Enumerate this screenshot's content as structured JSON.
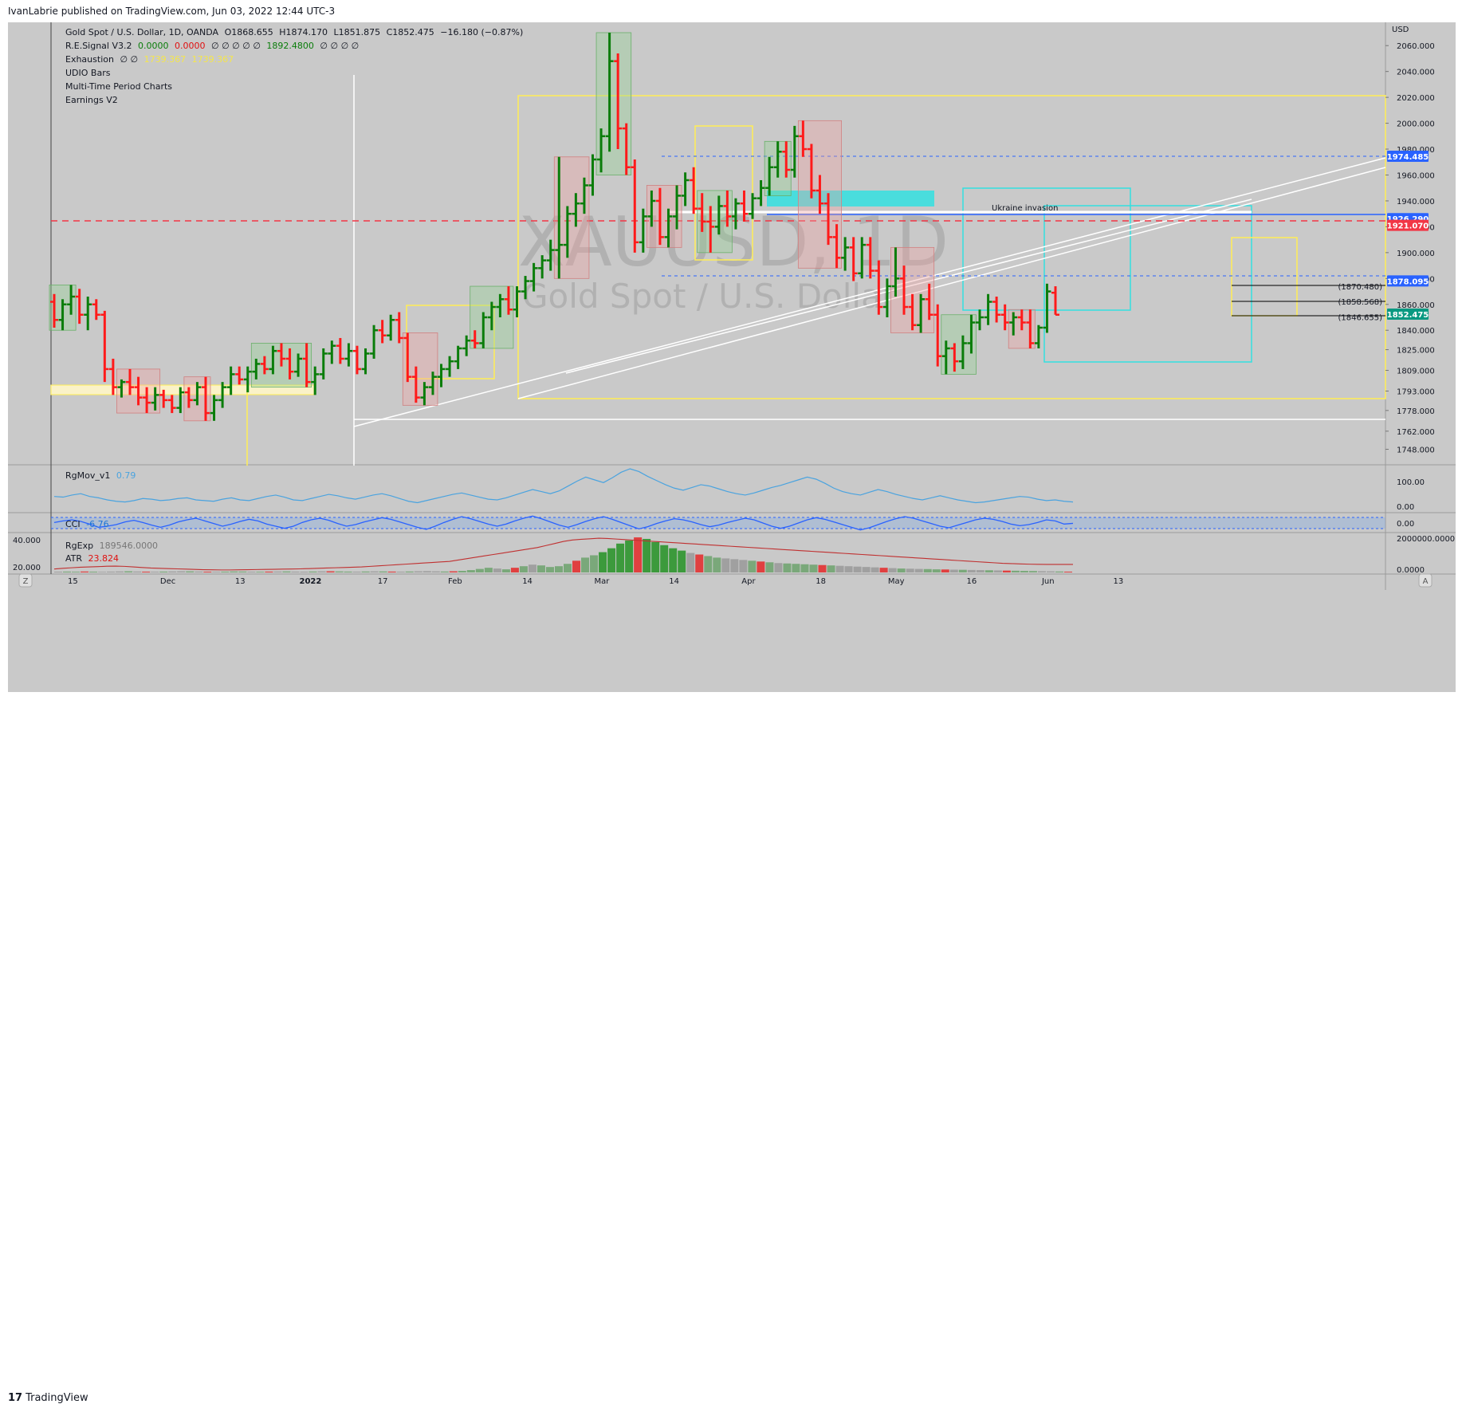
{
  "header": {
    "published": "IvanLabrie published on TradingView.com, Jun 03, 2022 12:44 UTC-3"
  },
  "footer": {
    "brand": "TradingView",
    "mark": "17"
  },
  "legend": {
    "symbol": "Gold Spot / U.S. Dollar, 1D, OANDA",
    "o": "O1868.655",
    "h": "H1874.170",
    "l": "L1851.875",
    "c": "C1852.475",
    "chg": "−16.180 (−0.87%)",
    "re_name": "R.E.Signal V3.2",
    "re_v1": "0.0000",
    "re_v2": "0.0000",
    "re_zeros": "∅ ∅ ∅ ∅ ∅",
    "re_v3": "1892.4800",
    "re_zeros2": "∅ ∅ ∅ ∅",
    "ex_name": "Exhaustion",
    "ex_zeros": "∅ ∅",
    "ex_v1": "1739.367",
    "ex_v2": "1739.367",
    "udio": "UDIO Bars",
    "mtp": "Multi-Time Period Charts",
    "earn": "Earnings V2"
  },
  "watermark": {
    "ticker": "XAUUSD, 1D",
    "name": "Gold Spot / U.S. Dollar"
  },
  "annotation": "Ukraine invasion",
  "pane_labels": {
    "rgmov": "RgMov_v1",
    "rgmov_val": "0.79",
    "cci": "CCI",
    "cci_val": "-6.76",
    "rgexp": "RgExp",
    "rgexp_val": "189546.0000",
    "atr": "ATR",
    "atr_val": "23.824"
  },
  "buttons": {
    "z": "Z",
    "a": "A"
  },
  "colors": {
    "up": "#0a7d0a",
    "down": "#ff1a1a",
    "neutral": "#000000",
    "bg": "#c9c9c9",
    "cyan": "#33e0e0",
    "yellow": "#ffee55"
  },
  "chart_data": {
    "type": "bar",
    "title": "Gold Spot / U.S. Dollar, 1D, OANDA",
    "currency": "USD",
    "ylim": [
      1736,
      2078
    ],
    "yticks": [
      "2060.000",
      "2040.000",
      "2020.000",
      "2000.000",
      "1980.000",
      "1960.000",
      "1940.000",
      "1920.000",
      "1900.000",
      "1880.000",
      "1860.000",
      "1840.000",
      "1825.000",
      "1809.000",
      "1793.000",
      "1778.000",
      "1762.000",
      "1748.000"
    ],
    "xticks": [
      "15",
      "Dec",
      "13",
      "2022",
      "17",
      "Feb",
      "14",
      "Mar",
      "14",
      "Apr",
      "18",
      "May",
      "16",
      "Jun",
      "13"
    ],
    "price_labels": [
      {
        "text": "1974.485",
        "value": 1974.485,
        "color": "#2962ff"
      },
      {
        "text": "1926.290",
        "value": 1926.29,
        "color": "#2962ff"
      },
      {
        "text": "1921.070",
        "value": 1921.07,
        "color": "#f23645"
      },
      {
        "text": "1878.095",
        "value": 1878.095,
        "color": "#2962ff"
      },
      {
        "text": "1852.475",
        "value": 1852.475,
        "color": "#089981"
      }
    ],
    "level_labels": [
      {
        "text": "(1870.480)",
        "value": 1870.48
      },
      {
        "text": "(1858.568)",
        "value": 1858.568
      },
      {
        "text": "(1846.655)",
        "value": 1846.655
      }
    ],
    "rgmov_ticks": [
      "100.00",
      "0.00"
    ],
    "cci_ticks": [
      "0.00"
    ],
    "rgexp_ticks": [
      "2000000.0000",
      "0.0000"
    ],
    "atr_ticks": [
      "40.000",
      "20.000"
    ],
    "ohlc": [
      [
        1862,
        1868,
        1842,
        1848
      ],
      [
        1848,
        1864,
        1840,
        1860
      ],
      [
        1860,
        1875,
        1852,
        1866
      ],
      [
        1866,
        1872,
        1845,
        1852
      ],
      [
        1852,
        1866,
        1840,
        1860
      ],
      [
        1860,
        1864,
        1848,
        1852
      ],
      [
        1852,
        1855,
        1800,
        1810
      ],
      [
        1810,
        1818,
        1790,
        1796
      ],
      [
        1796,
        1802,
        1788,
        1800
      ],
      [
        1800,
        1810,
        1790,
        1796
      ],
      [
        1796,
        1804,
        1782,
        1788
      ],
      [
        1788,
        1796,
        1776,
        1784
      ],
      [
        1784,
        1796,
        1778,
        1790
      ],
      [
        1790,
        1794,
        1780,
        1786
      ],
      [
        1786,
        1790,
        1776,
        1780
      ],
      [
        1780,
        1796,
        1776,
        1792
      ],
      [
        1792,
        1796,
        1780,
        1786
      ],
      [
        1786,
        1800,
        1782,
        1796
      ],
      [
        1796,
        1804,
        1770,
        1776
      ],
      [
        1776,
        1790,
        1770,
        1786
      ],
      [
        1786,
        1800,
        1780,
        1796
      ],
      [
        1796,
        1812,
        1790,
        1806
      ],
      [
        1806,
        1812,
        1798,
        1802
      ],
      [
        1802,
        1812,
        1792,
        1808
      ],
      [
        1808,
        1818,
        1802,
        1814
      ],
      [
        1814,
        1820,
        1806,
        1810
      ],
      [
        1810,
        1828,
        1806,
        1824
      ],
      [
        1824,
        1830,
        1812,
        1818
      ],
      [
        1818,
        1826,
        1802,
        1808
      ],
      [
        1808,
        1822,
        1804,
        1818
      ],
      [
        1818,
        1830,
        1796,
        1800
      ],
      [
        1800,
        1812,
        1790,
        1806
      ],
      [
        1806,
        1826,
        1802,
        1822
      ],
      [
        1822,
        1832,
        1814,
        1828
      ],
      [
        1828,
        1834,
        1814,
        1818
      ],
      [
        1818,
        1830,
        1812,
        1824
      ],
      [
        1824,
        1828,
        1806,
        1810
      ],
      [
        1810,
        1826,
        1806,
        1822
      ],
      [
        1822,
        1844,
        1818,
        1840
      ],
      [
        1840,
        1848,
        1830,
        1836
      ],
      [
        1836,
        1852,
        1832,
        1848
      ],
      [
        1848,
        1854,
        1830,
        1834
      ],
      [
        1834,
        1838,
        1800,
        1804
      ],
      [
        1804,
        1812,
        1784,
        1788
      ],
      [
        1788,
        1800,
        1782,
        1796
      ],
      [
        1796,
        1808,
        1790,
        1804
      ],
      [
        1804,
        1814,
        1796,
        1810
      ],
      [
        1810,
        1820,
        1804,
        1816
      ],
      [
        1816,
        1828,
        1810,
        1826
      ],
      [
        1826,
        1836,
        1820,
        1832
      ],
      [
        1832,
        1840,
        1826,
        1830
      ],
      [
        1830,
        1854,
        1826,
        1850
      ],
      [
        1850,
        1862,
        1840,
        1858
      ],
      [
        1858,
        1868,
        1850,
        1864
      ],
      [
        1864,
        1874,
        1852,
        1856
      ],
      [
        1856,
        1874,
        1850,
        1870
      ],
      [
        1870,
        1882,
        1864,
        1878
      ],
      [
        1878,
        1892,
        1870,
        1888
      ],
      [
        1888,
        1898,
        1880,
        1894
      ],
      [
        1894,
        1910,
        1886,
        1902
      ],
      [
        1902,
        1974,
        1880,
        1906
      ],
      [
        1906,
        1936,
        1896,
        1930
      ],
      [
        1930,
        1946,
        1920,
        1938
      ],
      [
        1938,
        1958,
        1930,
        1952
      ],
      [
        1952,
        1976,
        1944,
        1972
      ],
      [
        1972,
        1996,
        1962,
        1990
      ],
      [
        1990,
        2070,
        1978,
        2048
      ],
      [
        2048,
        2054,
        1980,
        1996
      ],
      [
        1996,
        2000,
        1960,
        1966
      ],
      [
        1966,
        1972,
        1900,
        1908
      ],
      [
        1908,
        1934,
        1900,
        1928
      ],
      [
        1928,
        1948,
        1920,
        1940
      ],
      [
        1940,
        1950,
        1906,
        1912
      ],
      [
        1912,
        1934,
        1904,
        1928
      ],
      [
        1928,
        1952,
        1918,
        1944
      ],
      [
        1944,
        1962,
        1936,
        1956
      ],
      [
        1956,
        1966,
        1930,
        1934
      ],
      [
        1934,
        1946,
        1916,
        1924
      ],
      [
        1924,
        1936,
        1900,
        1920
      ],
      [
        1920,
        1944,
        1914,
        1936
      ],
      [
        1936,
        1948,
        1920,
        1928
      ],
      [
        1928,
        1942,
        1918,
        1938
      ],
      [
        1938,
        1948,
        1924,
        1930
      ],
      [
        1930,
        1946,
        1926,
        1942
      ],
      [
        1942,
        1956,
        1936,
        1950
      ],
      [
        1950,
        1974,
        1944,
        1966
      ],
      [
        1966,
        1986,
        1958,
        1978
      ],
      [
        1978,
        1986,
        1958,
        1964
      ],
      [
        1964,
        1998,
        1958,
        1990
      ],
      [
        1990,
        2002,
        1974,
        1980
      ],
      [
        1980,
        1984,
        1942,
        1948
      ],
      [
        1948,
        1960,
        1930,
        1938
      ],
      [
        1938,
        1946,
        1906,
        1912
      ],
      [
        1912,
        1922,
        1888,
        1896
      ],
      [
        1896,
        1912,
        1886,
        1904
      ],
      [
        1904,
        1912,
        1878,
        1884
      ],
      [
        1884,
        1912,
        1880,
        1906
      ],
      [
        1906,
        1912,
        1880,
        1886
      ],
      [
        1886,
        1894,
        1852,
        1858
      ],
      [
        1858,
        1880,
        1850,
        1874
      ],
      [
        1874,
        1904,
        1866,
        1880
      ],
      [
        1880,
        1890,
        1852,
        1858
      ],
      [
        1858,
        1868,
        1840,
        1844
      ],
      [
        1844,
        1868,
        1838,
        1864
      ],
      [
        1864,
        1876,
        1848,
        1852
      ],
      [
        1852,
        1860,
        1812,
        1820
      ],
      [
        1820,
        1832,
        1806,
        1826
      ],
      [
        1826,
        1830,
        1808,
        1816
      ],
      [
        1816,
        1836,
        1810,
        1830
      ],
      [
        1830,
        1852,
        1822,
        1846
      ],
      [
        1846,
        1856,
        1840,
        1850
      ],
      [
        1850,
        1868,
        1844,
        1862
      ],
      [
        1862,
        1866,
        1846,
        1852
      ],
      [
        1852,
        1860,
        1840,
        1846
      ],
      [
        1846,
        1854,
        1836,
        1850
      ],
      [
        1850,
        1856,
        1840,
        1846
      ],
      [
        1846,
        1856,
        1826,
        1830
      ],
      [
        1830,
        1844,
        1826,
        1842
      ],
      [
        1842,
        1876,
        1838,
        1870
      ],
      [
        1869,
        1874,
        1852,
        1852
      ]
    ],
    "rgmov": [
      40,
      38,
      44,
      48,
      40,
      36,
      30,
      26,
      24,
      28,
      34,
      32,
      28,
      30,
      34,
      36,
      30,
      28,
      26,
      32,
      36,
      30,
      28,
      34,
      40,
      44,
      38,
      30,
      28,
      34,
      40,
      46,
      42,
      36,
      32,
      38,
      44,
      48,
      42,
      34,
      26,
      22,
      28,
      34,
      40,
      46,
      50,
      44,
      38,
      32,
      30,
      36,
      44,
      52,
      60,
      54,
      48,
      56,
      70,
      84,
      96,
      88,
      80,
      94,
      110,
      120,
      112,
      98,
      86,
      74,
      64,
      58,
      66,
      74,
      70,
      62,
      54,
      48,
      44,
      50,
      58,
      66,
      72,
      80,
      88,
      96,
      90,
      78,
      64,
      54,
      48,
      44,
      52,
      60,
      54,
      46,
      40,
      34,
      30,
      36,
      42,
      36,
      30,
      26,
      22,
      24,
      28,
      32,
      36,
      40,
      38,
      32,
      28,
      30,
      26,
      24
    ],
    "cci": [
      10,
      40,
      60,
      30,
      -20,
      -80,
      -60,
      -30,
      20,
      50,
      10,
      -40,
      -80,
      -40,
      20,
      60,
      90,
      40,
      -10,
      -60,
      -20,
      30,
      70,
      40,
      -20,
      -60,
      -100,
      -60,
      10,
      60,
      90,
      50,
      -10,
      -60,
      -30,
      20,
      60,
      100,
      70,
      20,
      -30,
      -80,
      -120,
      -60,
      10,
      70,
      120,
      80,
      30,
      -20,
      -60,
      -20,
      40,
      90,
      130,
      80,
      20,
      -40,
      -80,
      -30,
      30,
      80,
      120,
      70,
      10,
      -50,
      -110,
      -70,
      -10,
      40,
      80,
      60,
      20,
      -30,
      -70,
      -40,
      10,
      50,
      90,
      60,
      0,
      -60,
      -100,
      -60,
      0,
      60,
      100,
      70,
      20,
      -30,
      -80,
      -130,
      -90,
      -30,
      30,
      80,
      120,
      90,
      40,
      -10,
      -60,
      -90,
      -40,
      10,
      60,
      90,
      70,
      30,
      -20,
      -50,
      -30,
      10,
      60,
      40,
      -20,
      -6.76
    ],
    "rgexp": [
      20,
      22,
      18,
      24,
      20,
      16,
      22,
      26,
      30,
      24,
      20,
      18,
      22,
      26,
      30,
      28,
      24,
      20,
      18,
      22,
      26,
      24,
      20,
      18,
      22,
      24,
      26,
      22,
      20,
      24,
      28,
      30,
      26,
      22,
      20,
      24,
      28,
      26,
      22,
      20,
      24,
      30,
      34,
      28,
      24,
      30,
      40,
      60,
      90,
      120,
      100,
      80,
      120,
      160,
      200,
      180,
      140,
      160,
      220,
      300,
      380,
      440,
      520,
      620,
      740,
      820,
      900,
      860,
      780,
      700,
      620,
      560,
      500,
      460,
      420,
      380,
      360,
      340,
      320,
      300,
      280,
      260,
      240,
      230,
      220,
      210,
      200,
      190,
      180,
      170,
      160,
      150,
      140,
      130,
      120,
      110,
      100,
      96,
      90,
      86,
      80,
      76,
      72,
      68,
      64,
      60,
      56,
      52,
      48,
      44,
      40,
      36,
      32,
      28,
      24,
      20
    ],
    "atr": [
      20.5,
      21,
      21.4,
      21.8,
      22,
      22.2,
      22.5,
      22.6,
      22.4,
      22,
      21.6,
      21.2,
      21,
      20.8,
      20.6,
      20.4,
      20.2,
      20,
      19.9,
      19.8,
      19.8,
      19.9,
      20,
      20.1,
      20.2,
      20.3,
      20.4,
      20.5,
      20.6,
      20.8,
      21,
      21.2,
      21.4,
      21.6,
      21.8,
      22,
      22.4,
      22.8,
      23.2,
      23.6,
      24,
      24.4,
      24.8,
      25.2,
      25.6,
      26,
      27,
      28,
      29,
      30,
      31,
      32,
      33,
      34,
      35,
      36,
      37.5,
      39,
      40.5,
      41.5,
      42,
      42.4,
      42.8,
      42.6,
      42.2,
      41.8,
      41.4,
      41,
      40.6,
      40.2,
      39.8,
      39.4,
      39,
      38.6,
      38.2,
      37.8,
      37.4,
      37,
      36.6,
      36.2,
      35.8,
      35.4,
      35,
      34.6,
      34.2,
      33.8,
      33.4,
      33,
      32.6,
      32.2,
      31.8,
      31.4,
      31,
      30.6,
      30.2,
      29.8,
      29.4,
      29,
      28.6,
      28.2,
      27.8,
      27.4,
      27,
      26.6,
      26.2,
      25.8,
      25.4,
      25,
      24.6,
      24.4,
      24.2,
      24,
      23.9,
      23.8,
      23.8,
      23.82,
      23.824
    ]
  }
}
